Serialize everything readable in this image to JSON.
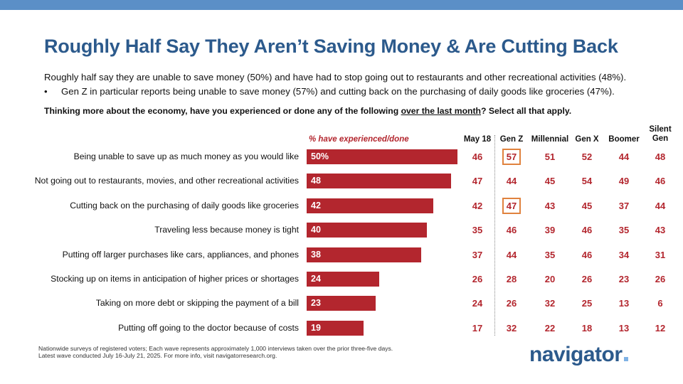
{
  "title": "Roughly Half Say They Aren’t Saving Money & Are Cutting Back",
  "summary": "Roughly half say they are unable to save money (50%) and have had to stop going out to restaurants and other recreational activities (48%).",
  "bullet": "Gen Z in particular reports being unable to save money (57%) and cutting back on the purchasing of daily goods like groceries (47%).",
  "bullet_marker": "•",
  "question": {
    "before": "Thinking more about the economy, have you experienced or done any of the following ",
    "underlined": "over the last month",
    "after": "? Select all that apply."
  },
  "colors": {
    "bar": "#b3262e",
    "title": "#2c5a8c",
    "topbar": "#5b8fc7",
    "highlight": "#e0823e"
  },
  "chart_data": {
    "type": "bar",
    "orientation": "horizontal",
    "value_header": "% have experienced/done",
    "categories": [
      "Being unable to save up as much money as you would like",
      "Not going out to restaurants, movies, and other recreational activities",
      "Cutting back on the purchasing of daily goods like groceries",
      "Traveling less because money is tight",
      "Putting off larger purchases like cars, appliances, and phones",
      "Stocking up on items in anticipation of higher prices or shortages",
      "Taking on more debt or skipping the payment of a bill",
      "Putting off going to the doctor because of costs"
    ],
    "values": [
      50,
      48,
      42,
      40,
      38,
      24,
      23,
      19
    ],
    "value_labels": [
      "50%",
      "48",
      "42",
      "40",
      "38",
      "24",
      "23",
      "19"
    ],
    "xlim": [
      0,
      60
    ],
    "table": {
      "columns": [
        "May 18",
        "Gen Z",
        "Millennial",
        "Gen X",
        "Boomer",
        "Silent Gen"
      ],
      "rows": [
        [
          46,
          57,
          51,
          52,
          44,
          48
        ],
        [
          47,
          44,
          45,
          54,
          49,
          46
        ],
        [
          42,
          47,
          43,
          45,
          37,
          44
        ],
        [
          35,
          46,
          39,
          46,
          35,
          43
        ],
        [
          37,
          44,
          35,
          46,
          34,
          31
        ],
        [
          26,
          28,
          20,
          26,
          23,
          26
        ],
        [
          24,
          26,
          32,
          25,
          13,
          6
        ],
        [
          17,
          32,
          22,
          18,
          13,
          12
        ]
      ],
      "highlighted": [
        {
          "row": 0,
          "col": 1
        },
        {
          "row": 2,
          "col": 1
        }
      ]
    }
  },
  "footnote": {
    "line1": "Nationwide surveys of registered voters; Each wave represents approximately 1,000 interviews taken over the prior three-five days.",
    "line2": "Latest wave conducted July 16-July 21, 2025. For more info, visit navigatorresearch.org."
  },
  "logo_text": "navigator"
}
